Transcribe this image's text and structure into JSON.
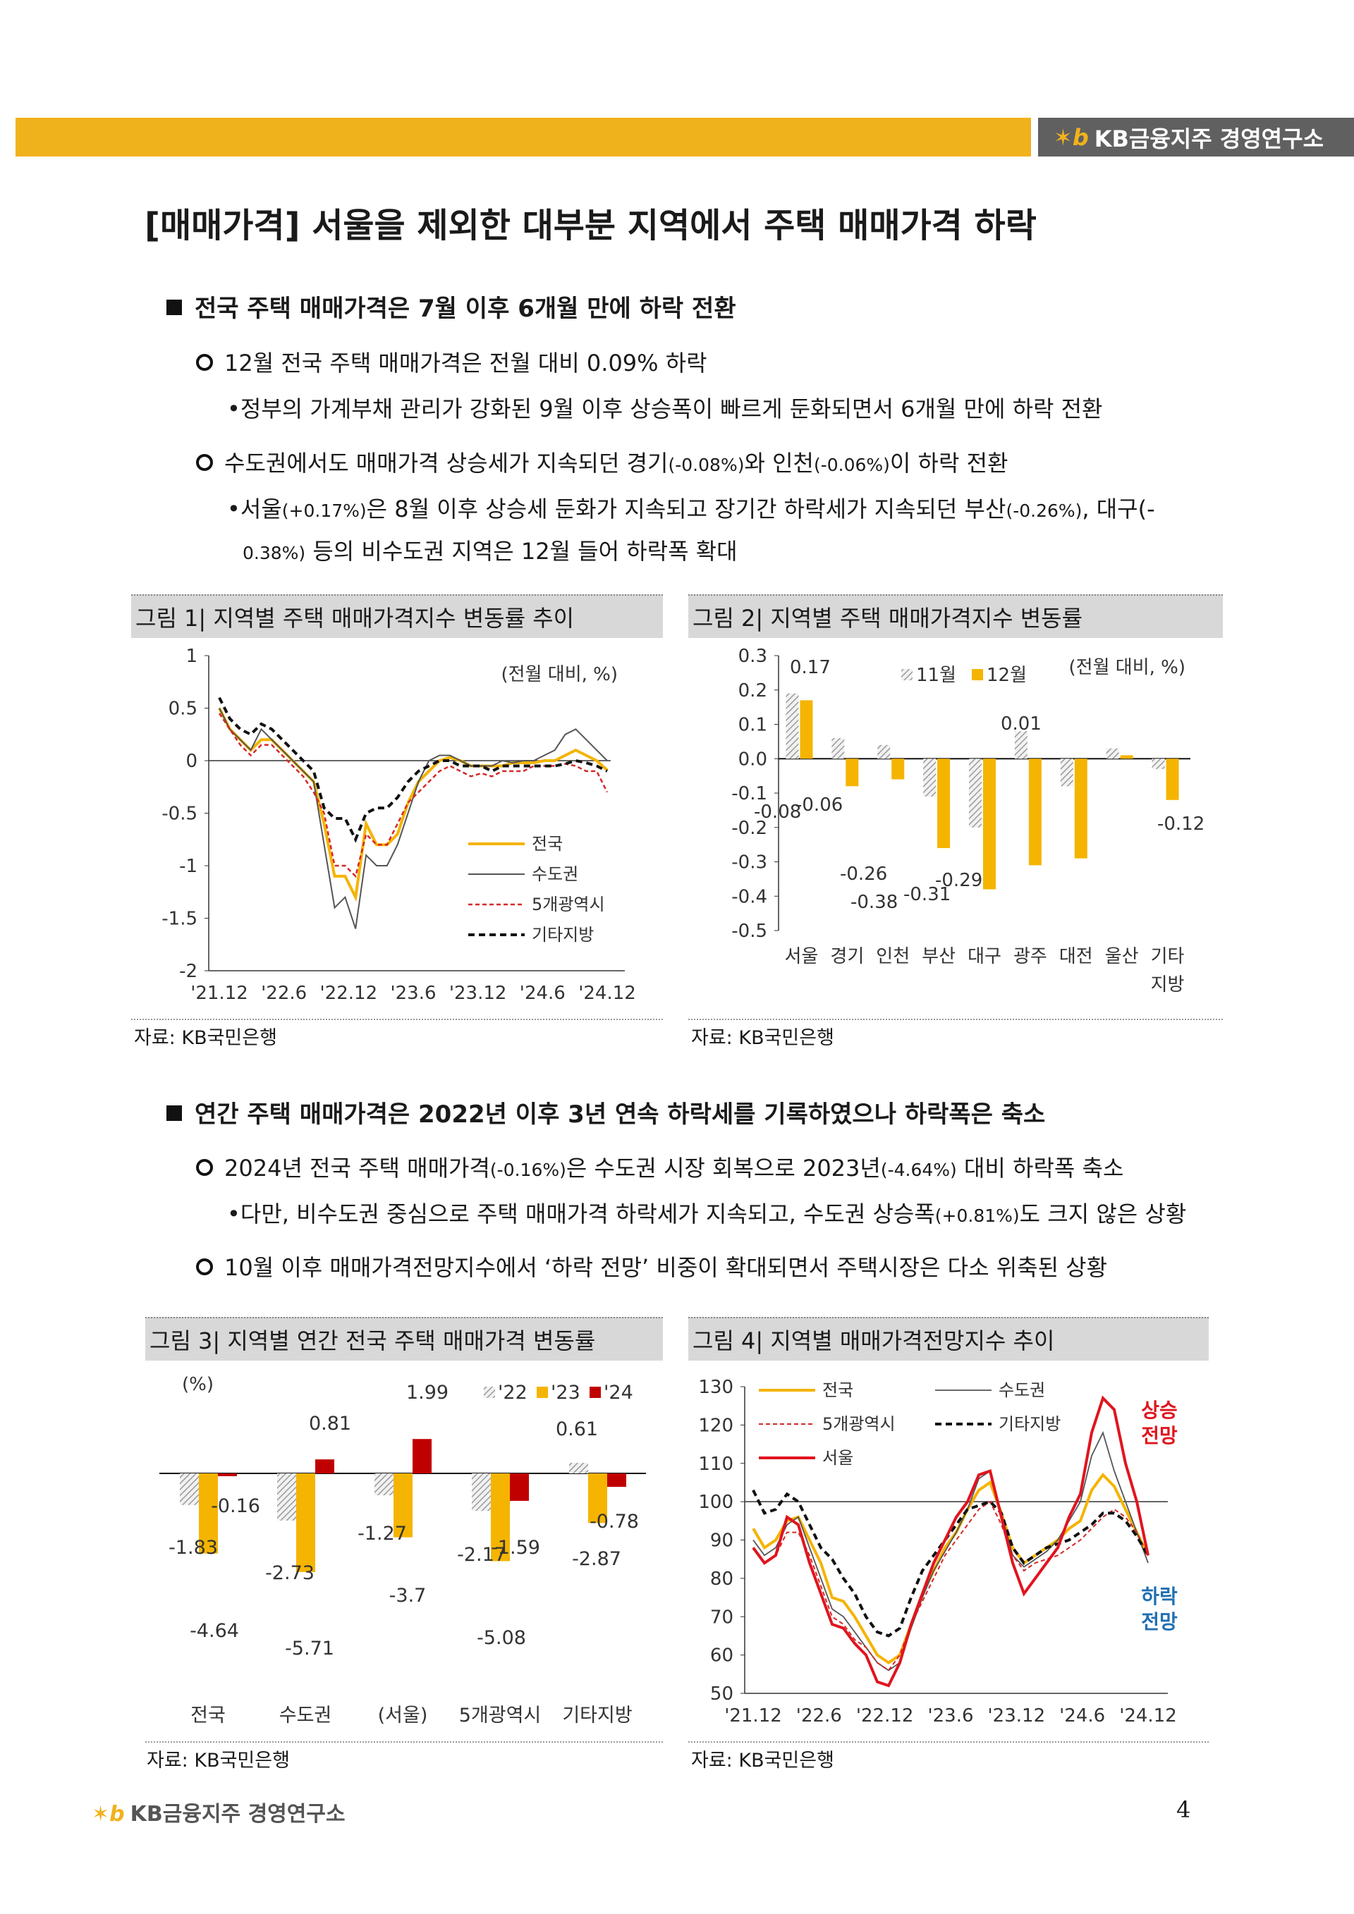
{
  "header": {
    "brand": "KB금융지주 경영연구소"
  },
  "title": "[매매가격] 서울을 제외한 대부분 지역에서 주택 매매가격 하락",
  "section1": {
    "heading": "전국 주택 매매가격은 7월 이후 6개월 만에 하락 전환",
    "b1": "12월 전국 주택 매매가격은 전월 대비 0.09% 하락",
    "b1_sub": "•정부의 가계부채 관리가 강화된 9월 이후 상승폭이 빠르게 둔화되면서 6개월 만에 하락 전환",
    "b2_a": "수도권에서도 매매가격 상승세가 지속되던 경기",
    "b2_b": "(-0.08%)",
    "b2_c": "와 인천",
    "b2_d": "(-0.06%)",
    "b2_e": "이 하락 전환",
    "b2_sub1_a": "•서울",
    "b2_sub1_b": "(+0.17%)",
    "b2_sub1_c": "은 8월 이후 상승세 둔화가 지속되고 장기간 하락세가 지속되던 부산",
    "b2_sub1_d": "(-0.26%)",
    "b2_sub1_e": ", 대구(-",
    "b2_sub2_a": "0.38%)",
    "b2_sub2_b": " 등의 비수도권 지역은 12월 들어 하락폭 확대"
  },
  "section2": {
    "heading": "연간 주택 매매가격은 2022년 이후 3년 연속 하락세를 기록하였으나 하락폭은 축소",
    "b1_a": "2024년 전국 주택 매매가격",
    "b1_b": "(-0.16%)",
    "b1_c": "은 수도권 시장 회복으로 2023년",
    "b1_d": "(-4.64%)",
    "b1_e": " 대비 하락폭 축소",
    "b1_sub_a": "•다만, 비수도권 중심으로 주택 매매가격 하락세가 지속되고, 수도권 상승폭",
    "b1_sub_b": "(+0.81%)",
    "b1_sub_c": "도 크지 않은 상황",
    "b2": "10월 이후 매매가격전망지수에서 ‘하락 전망’ 비중이 확대되면서 주택시장은 다소 위축된 상황"
  },
  "figures": {
    "fig1_caption": "그림 1| 지역별 주택 매매가격지수 변동률 추이",
    "fig2_caption": "그림 2| 지역별 주택 매매가격지수 변동률",
    "fig3_caption": "그림 3| 지역별 연간 전국 주택 매매가격 변동률",
    "fig4_caption": "그림 4| 지역별 매매가격전망지수 추이",
    "source": "자료: KB국민은행"
  },
  "chart_data": [
    {
      "id": "fig1",
      "type": "line",
      "unit_note": "(전월 대비, %)",
      "ylim": [
        -2,
        1
      ],
      "yticks": [
        "1",
        "0.5",
        "0",
        "-0.5",
        "-1",
        "-1.5",
        "-2"
      ],
      "xticks": [
        "'21.12",
        "'22.6",
        "'22.12",
        "'23.6",
        "'23.12",
        "'24.6",
        "'24.12"
      ],
      "legend": [
        "전국",
        "수도권",
        "5개광역시",
        "기타지방"
      ],
      "colors": [
        "#f5b400",
        "#555555",
        "#d62828",
        "#111111"
      ],
      "series": [
        {
          "name": "전국",
          "values": [
            0.5,
            0.3,
            0.2,
            0.1,
            0.2,
            0.2,
            0.1,
            0,
            -0.1,
            -0.2,
            -0.6,
            -1.1,
            -1.1,
            -1.3,
            -0.6,
            -0.8,
            -0.8,
            -0.7,
            -0.4,
            -0.2,
            -0.1,
            0,
            0.03,
            0,
            -0.05,
            -0.05,
            -0.05,
            -0.05,
            -0.02,
            -0.02,
            -0.02,
            0,
            0,
            0.05,
            0.1,
            0.05,
            0,
            -0.09
          ]
        },
        {
          "name": "수도권",
          "values": [
            0.5,
            0.3,
            0.2,
            0.1,
            0.3,
            0.2,
            0.1,
            0,
            -0.1,
            -0.2,
            -0.8,
            -1.4,
            -1.3,
            -1.6,
            -0.9,
            -1.0,
            -1.0,
            -0.8,
            -0.5,
            -0.2,
            0,
            0.05,
            0.05,
            0,
            -0.05,
            -0.05,
            -0.05,
            0,
            -0.02,
            0,
            0,
            0.05,
            0.1,
            0.25,
            0.3,
            0.2,
            0.1,
            0
          ]
        },
        {
          "name": "5개광역시",
          "values": [
            0.45,
            0.3,
            0.15,
            0.05,
            0.15,
            0.15,
            0.05,
            -0.05,
            -0.15,
            -0.3,
            -0.5,
            -1.0,
            -1.0,
            -1.1,
            -0.7,
            -0.8,
            -0.8,
            -0.6,
            -0.4,
            -0.3,
            -0.2,
            -0.1,
            -0.05,
            -0.1,
            -0.15,
            -0.12,
            -0.15,
            -0.1,
            -0.1,
            -0.1,
            -0.05,
            -0.05,
            -0.05,
            -0.03,
            -0.05,
            -0.1,
            -0.1,
            -0.3
          ]
        },
        {
          "name": "기타지방",
          "values": [
            0.6,
            0.4,
            0.3,
            0.25,
            0.35,
            0.3,
            0.2,
            0.1,
            0,
            -0.1,
            -0.45,
            -0.55,
            -0.55,
            -0.75,
            -0.5,
            -0.45,
            -0.45,
            -0.35,
            -0.2,
            -0.1,
            -0.05,
            0,
            0,
            -0.05,
            -0.05,
            -0.05,
            -0.1,
            -0.05,
            -0.05,
            -0.05,
            -0.05,
            -0.05,
            -0.05,
            -0.03,
            0,
            -0.02,
            -0.05,
            -0.1
          ]
        }
      ]
    },
    {
      "id": "fig2",
      "type": "bar",
      "unit_note": "(전월 대비, %)",
      "ylim": [
        -0.5,
        0.3
      ],
      "yticks": [
        "0.3",
        "0.2",
        "0.1",
        "0.0",
        "-0.1",
        "-0.2",
        "-0.3",
        "-0.4",
        "-0.5"
      ],
      "categories": [
        "서울",
        "경기",
        "인천",
        "부산",
        "대구",
        "광주",
        "대전",
        "울산",
        "기타\n지방"
      ],
      "category_labels": [
        "서울",
        "경기",
        "인천",
        "부산",
        "대구",
        "광주",
        "대전",
        "울산",
        "기타"
      ],
      "category_label2": "지방",
      "legend": [
        "11월",
        "12월"
      ],
      "series": [
        {
          "name": "11월",
          "values": [
            0.19,
            0.06,
            0.04,
            -0.11,
            -0.2,
            0.08,
            -0.08,
            0.03,
            -0.03
          ]
        },
        {
          "name": "12월",
          "values": [
            0.17,
            -0.08,
            -0.06,
            -0.26,
            -0.38,
            -0.31,
            -0.29,
            0.01,
            -0.12
          ]
        }
      ],
      "data_labels": [
        "0.17",
        "-0.08",
        "-0.06",
        "-0.26",
        "-0.38",
        "-0.31",
        "-0.29",
        "0.01",
        "-0.12"
      ]
    },
    {
      "id": "fig3",
      "type": "bar",
      "unit_note": "(%)",
      "categories": [
        "전국",
        "수도권",
        "(서울)",
        "5개광역시",
        "기타지방"
      ],
      "legend": [
        "'22",
        "'23",
        "'24"
      ],
      "series": [
        {
          "name": "'22",
          "values": [
            -1.83,
            -2.73,
            -1.27,
            -2.17,
            0.61
          ]
        },
        {
          "name": "'23",
          "values": [
            -4.64,
            -5.71,
            -3.7,
            -5.08,
            -2.87
          ]
        },
        {
          "name": "'24",
          "values": [
            -0.16,
            0.81,
            1.99,
            -1.59,
            -0.78
          ]
        }
      ],
      "labels": {
        "s22": [
          "-1.83",
          "-2.73",
          "-1.27",
          "-2.17",
          "0.61"
        ],
        "s23": [
          "-4.64",
          "-5.71",
          "-3.7",
          "-5.08",
          "-2.87"
        ],
        "s24": [
          "-0.16",
          "0.81",
          "1.99",
          "-1.59",
          "-0.78"
        ]
      }
    },
    {
      "id": "fig4",
      "type": "line",
      "ylim": [
        50,
        130
      ],
      "yticks": [
        "130",
        "120",
        "110",
        "100",
        "90",
        "80",
        "70",
        "60",
        "50"
      ],
      "xticks": [
        "'21.12",
        "'22.6",
        "'22.12",
        "'23.6",
        "'23.12",
        "'24.6",
        "'24.12"
      ],
      "legend": [
        "전국",
        "수도권",
        "5개광역시",
        "기타지방",
        "서울"
      ],
      "colors": [
        "#f5b400",
        "#555555",
        "#d62828",
        "#111111",
        "#e0141e"
      ],
      "annotation_up": [
        "상승",
        "전망"
      ],
      "annotation_down": [
        "하락",
        "전망"
      ],
      "series": [
        {
          "name": "전국",
          "values": [
            93,
            88,
            90,
            95,
            96,
            90,
            84,
            75,
            74,
            70,
            65,
            60,
            58,
            60,
            68,
            76,
            82,
            88,
            92,
            98,
            103,
            105,
            97,
            88,
            84,
            86,
            88,
            90,
            93,
            95,
            103,
            107,
            104,
            98,
            92,
            86
          ]
        },
        {
          "name": "수도권",
          "values": [
            90,
            86,
            88,
            94,
            96,
            88,
            80,
            72,
            70,
            66,
            62,
            58,
            56,
            58,
            67,
            75,
            82,
            87,
            92,
            98,
            106,
            108,
            97,
            86,
            83,
            85,
            87,
            90,
            95,
            100,
            112,
            118,
            108,
            100,
            92,
            84
          ]
        },
        {
          "name": "5개광역시",
          "values": [
            88,
            84,
            86,
            92,
            92,
            86,
            78,
            70,
            68,
            64,
            62,
            58,
            56,
            60,
            68,
            74,
            80,
            86,
            90,
            94,
            98,
            100,
            94,
            86,
            82,
            84,
            85,
            86,
            88,
            90,
            93,
            96,
            98,
            96,
            92,
            86
          ]
        },
        {
          "name": "기타지방",
          "values": [
            103,
            97,
            98,
            102,
            100,
            94,
            88,
            85,
            80,
            76,
            70,
            66,
            65,
            67,
            75,
            82,
            86,
            90,
            94,
            98,
            99,
            100,
            97,
            88,
            84,
            86,
            88,
            89,
            90,
            92,
            94,
            97,
            97,
            95,
            91,
            86
          ]
        },
        {
          "name": "서울",
          "values": [
            88,
            84,
            86,
            96,
            94,
            84,
            76,
            68,
            67,
            63,
            60,
            53,
            52,
            58,
            68,
            76,
            84,
            90,
            96,
            100,
            107,
            108,
            96,
            84,
            76,
            80,
            84,
            88,
            96,
            102,
            118,
            127,
            124,
            110,
            100,
            86
          ]
        }
      ]
    }
  ],
  "footer": {
    "brand": "KB금융지주 경영연구소",
    "page": "4"
  }
}
